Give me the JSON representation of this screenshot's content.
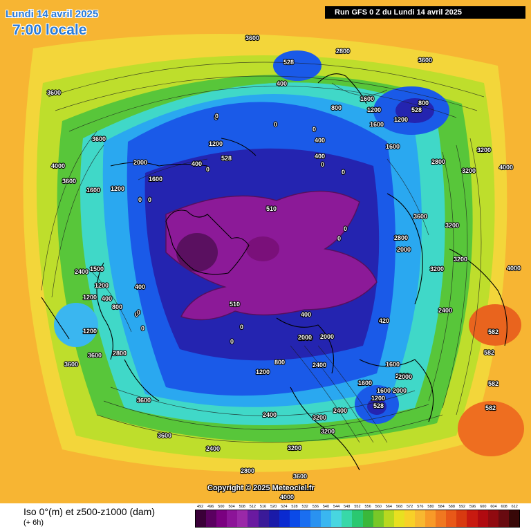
{
  "header": {
    "date_line": "Lundi 14 avril 2025",
    "time_line": "7:00 locale",
    "run_banner": "Run GFS 0 Z du Lundi 14 avril 2025"
  },
  "copyright": "Copyright © 2025 Meteociel.fr",
  "footer": {
    "title": "Iso 0°(m) et z500-z1000 (dam)",
    "step": "(+ 6h)"
  },
  "legend": {
    "values": [
      "492",
      "496",
      "500",
      "504",
      "508",
      "512",
      "516",
      "520",
      "524",
      "528",
      "532",
      "536",
      "540",
      "544",
      "548",
      "552",
      "556",
      "560",
      "564",
      "568",
      "572",
      "576",
      "580",
      "584",
      "588",
      "592",
      "596",
      "600",
      "604",
      "608",
      "612"
    ],
    "colors": [
      "#3a0038",
      "#5a0060",
      "#7a0080",
      "#8c1498",
      "#9a28a8",
      "#6a1aa0",
      "#3a1a98",
      "#1a1aa8",
      "#0a2ad0",
      "#0a4ae8",
      "#1a6ef0",
      "#2a92f0",
      "#3ab6f0",
      "#48d6e0",
      "#38d8a8",
      "#2ac870",
      "#3ab83a",
      "#78c828",
      "#b8d820",
      "#e8e020",
      "#f8d028",
      "#f8b830",
      "#f89a28",
      "#f07820",
      "#e85818",
      "#d83a10",
      "#c81a10",
      "#b00a10",
      "#900a10",
      "#680a10",
      "#380808"
    ]
  },
  "map": {
    "thickness_labels": [
      "528",
      "510",
      "510",
      "528",
      "528",
      "528",
      "582",
      "582",
      "582",
      "582",
      "528"
    ],
    "iso0_labels": [
      "3600",
      "3600",
      "3600",
      "4000",
      "3600",
      "1600",
      "1200",
      "2000",
      "1600",
      "0",
      "0",
      "1500",
      "2400",
      "1200",
      "1200",
      "400",
      "800",
      "400",
      "0",
      "1200",
      "3600",
      "2800",
      "3600",
      "3600",
      "3600",
      "2400",
      "3200",
      "2800",
      "3600",
      "4000",
      "2400",
      "3200",
      "2000",
      "1600",
      "400",
      "0",
      "0",
      "0",
      "1200",
      "2000",
      "2400",
      "1600",
      "1200",
      "1600",
      "2000",
      "2400",
      "1600",
      "3200",
      "3200",
      "3600",
      "4000",
      "2800",
      "2000",
      "1600",
      "1200",
      "800",
      "1600",
      "400",
      "0",
      "0",
      "0",
      "0",
      "0",
      "0",
      "420",
      "2800",
      "3200",
      "3200",
      "3600",
      "4000",
      "3200",
      "3200",
      "2400",
      "2800",
      "2000",
      "1600",
      "1200",
      "800",
      "0",
      "400",
      "0",
      "0",
      "400",
      "0",
      "0",
      "800",
      "1200",
      "400",
      "2000",
      "2000"
    ]
  }
}
